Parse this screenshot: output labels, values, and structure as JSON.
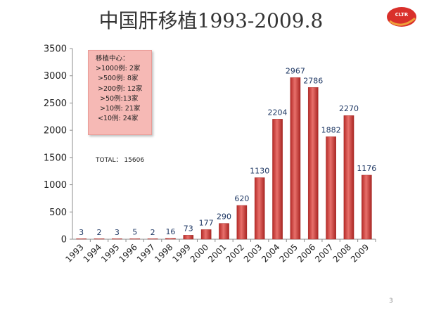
{
  "slide": {
    "title": "中国肝移植1993-2009.8",
    "logo_text": "CLTR",
    "page_number": "3"
  },
  "info_box": {
    "heading": "移植中心：",
    "lines": [
      ">1000例: 2家",
      ">500例: 8家",
      ">200例: 12家",
      ">50例:13家",
      ">10例: 21家",
      "<10例:  24家"
    ]
  },
  "total_text": "TOTAL：  15606",
  "colors": {
    "bar": "#c8312f",
    "bar_highlight": "#e8706b",
    "label": "#1f3864",
    "box": "#f6b9b5",
    "logo": "#d9302b"
  },
  "chart_data": {
    "type": "bar",
    "title": "中国肝移植1993-2009.8",
    "categories": [
      "1993",
      "1994",
      "1995",
      "1996",
      "1997",
      "1998",
      "1999",
      "2000",
      "2001",
      "2002",
      "2003",
      "2004",
      "2005",
      "2006",
      "2007",
      "2008",
      "2009"
    ],
    "values": [
      3,
      2,
      3,
      5,
      2,
      16,
      73,
      177,
      290,
      620,
      1130,
      2204,
      2967,
      2786,
      1882,
      2270,
      1176
    ],
    "xlabel": "",
    "ylabel": "",
    "ylim": [
      0,
      3500
    ],
    "yticks": [
      0,
      500,
      1000,
      1500,
      2000,
      2500,
      3000,
      3500
    ],
    "grid": false,
    "data_labels": true
  }
}
